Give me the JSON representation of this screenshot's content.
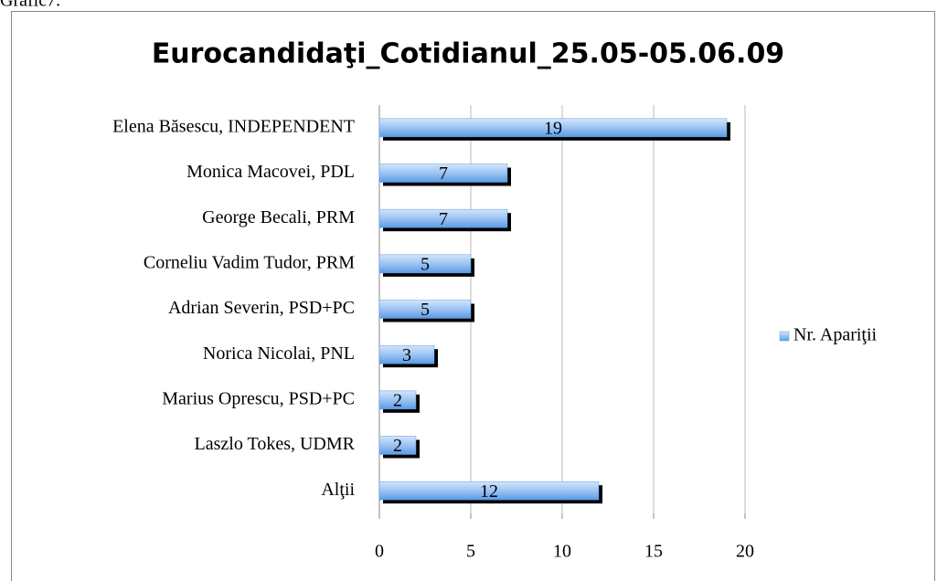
{
  "caption": "Grafic7.",
  "chart_data": {
    "type": "bar",
    "orientation": "horizontal",
    "title": "Eurocandidaţi_Cotidianul_25.05-05.06.09",
    "categories": [
      "Elena Băsescu, INDEPENDENT",
      "Monica Macovei, PDL",
      "George Becali, PRM",
      "Corneliu Vadim Tudor, PRM",
      "Adrian Severin, PSD+PC",
      "Norica Nicolai, PNL",
      "Marius Oprescu, PSD+PC",
      "Laszlo Tokes, UDMR",
      "Alţii"
    ],
    "series": [
      {
        "name": "Nr. Apariţii",
        "color": "#5a9be6",
        "values": [
          19,
          7,
          7,
          5,
          5,
          3,
          2,
          2,
          12
        ]
      }
    ],
    "xlim": [
      0,
      20
    ],
    "xticks": [
      0,
      5,
      10,
      15,
      20
    ],
    "grid": true,
    "legend": "right"
  }
}
